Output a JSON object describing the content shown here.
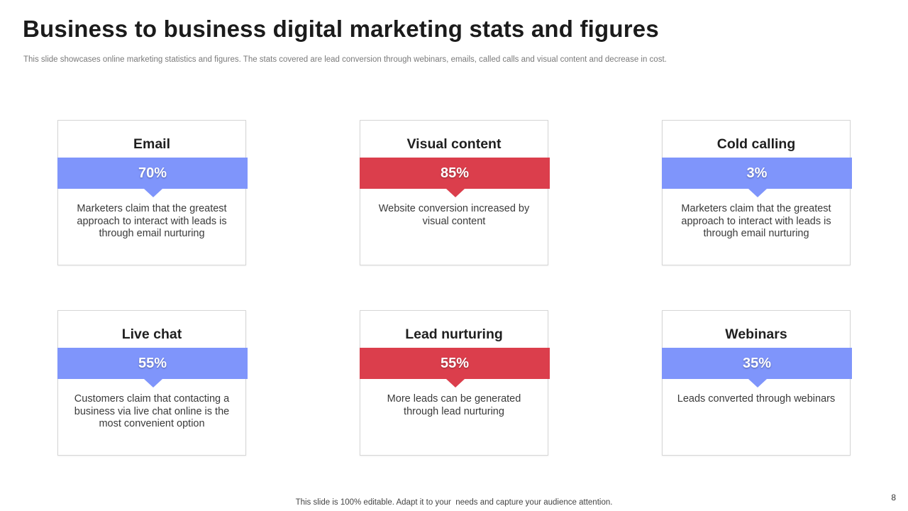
{
  "title": "Business to business digital marketing stats and figures",
  "subtitle": "This slide showcases online marketing statistics and figures. The stats covered are lead conversion through webinars, emails, called calls and visual content and decrease in cost.",
  "cards": [
    {
      "title": "Email",
      "percent": "70%",
      "description": "Marketers claim that the greatest approach to interact with leads is through email nurturing",
      "color": "#7f95fb"
    },
    {
      "title": "Visual content",
      "percent": "85%",
      "description": "Website conversion increased by visual content",
      "color": "#db3e4c"
    },
    {
      "title": "Cold calling",
      "percent": "3%",
      "description": "Marketers claim that the greatest approach to interact with leads is through email nurturing",
      "color": "#7f95fb"
    },
    {
      "title": "Live chat",
      "percent": "55%",
      "description": "Customers claim that contacting a business via live chat online is the most convenient option",
      "color": "#7f95fb"
    },
    {
      "title": "Lead nurturing",
      "percent": "55%",
      "description": "More leads can be generated through lead nurturing",
      "color": "#db3e4c"
    },
    {
      "title": "Webinars",
      "percent": "35%",
      "description": "Leads converted through webinars",
      "color": "#7f95fb"
    }
  ],
  "footer": "This slide is 100% editable. Adapt it to your  needs and capture your audience attention.",
  "page_number": "8"
}
